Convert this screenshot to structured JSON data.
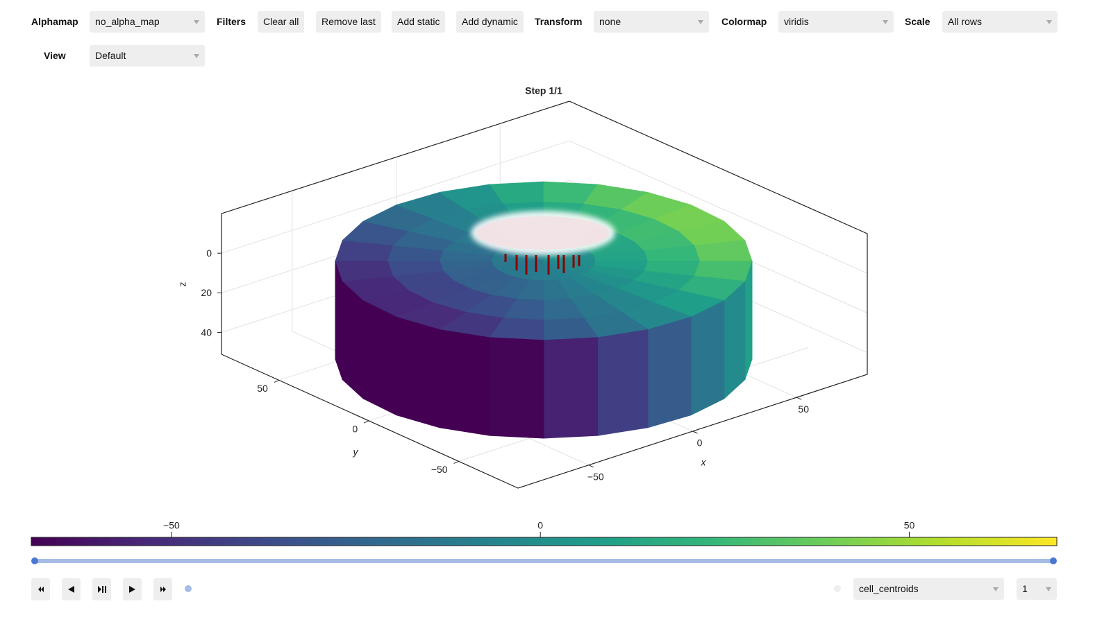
{
  "toolbar": {
    "alphamap": {
      "label": "Alphamap",
      "value": "no_alpha_map"
    },
    "filters": {
      "label": "Filters",
      "buttons": [
        "Clear all",
        "Remove last",
        "Add static",
        "Add dynamic"
      ]
    },
    "transform": {
      "label": "Transform",
      "value": "none"
    },
    "colormap": {
      "label": "Colormap",
      "value": "viridis"
    },
    "scale": {
      "label": "Scale",
      "value": "All rows"
    },
    "view": {
      "label": "View",
      "value": "Default"
    }
  },
  "plot": {
    "title": "Step 1/1",
    "x_label": "x",
    "y_label": "y",
    "z_label": "z",
    "xlim": [
      -84,
      84
    ],
    "xticks": [
      {
        "value": -50,
        "label": "−50"
      },
      0,
      50
    ],
    "ylim": [
      82,
      -83
    ],
    "yticks": [
      50,
      0,
      {
        "value": -50,
        "label": "−50"
      }
    ],
    "zlim": [
      -20,
      51
    ],
    "zticks": [
      0,
      20,
      40
    ]
  },
  "colorbar": {
    "lim": [
      -69,
      70
    ],
    "ticks": [
      {
        "value": -50,
        "label": "−50"
      },
      0,
      50
    ]
  },
  "footer": {
    "variable": "cell_centroids",
    "component": "1"
  }
}
